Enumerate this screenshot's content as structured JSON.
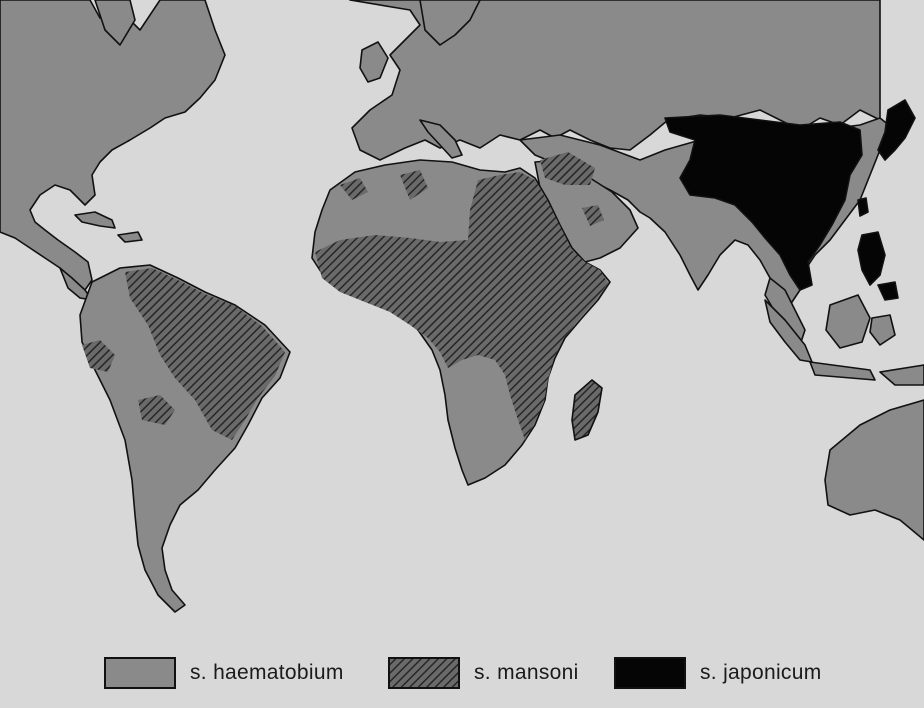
{
  "legend": [
    {
      "label": "s. haematobium",
      "color": "#8a8a8a",
      "pattern": "plain"
    },
    {
      "label": "s. mansoni",
      "color": "#5a5a5a",
      "pattern": "hatched"
    },
    {
      "label": "s. japonicum",
      "color": "#050505",
      "pattern": "solid"
    }
  ],
  "colors": {
    "ocean": "#d8d8d8",
    "land": "#8a8a8a",
    "mansoni": "#474747",
    "japonicum": "#050505",
    "coast": "#111111"
  }
}
